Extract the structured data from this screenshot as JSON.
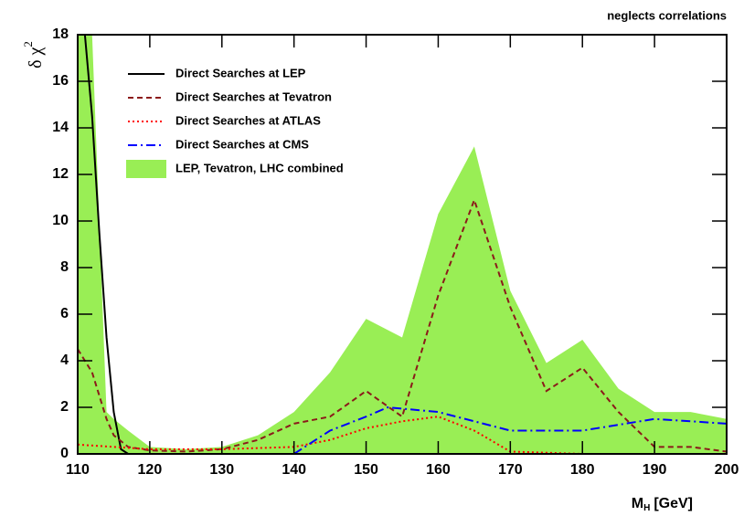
{
  "chart_data": {
    "type": "line",
    "annotation": "neglects correlations",
    "x_label": [
      "M",
      "H",
      "[GeV]"
    ],
    "y_label": [
      "δ χ",
      "2"
    ],
    "xlim": [
      110,
      200
    ],
    "ylim": [
      0,
      18
    ],
    "xticks": [
      110,
      120,
      130,
      140,
      150,
      160,
      170,
      180,
      190,
      200
    ],
    "yticks": [
      0,
      2,
      4,
      6,
      8,
      10,
      12,
      14,
      16,
      18
    ],
    "legend": "upper left",
    "series": [
      {
        "name": "Direct Searches at LEP",
        "color": "#000000",
        "style": "solid",
        "x": [
          111,
          112,
          113,
          114,
          115,
          116,
          117,
          120
        ],
        "values": [
          18,
          14.5,
          9.5,
          5,
          1.8,
          0.2,
          0,
          0
        ]
      },
      {
        "name": "Direct Searches at Tevatron",
        "color": "#8b1a1a",
        "style": "dashed",
        "x": [
          110,
          112,
          114,
          115,
          117,
          120,
          125,
          130,
          135,
          140,
          145,
          150,
          155,
          160,
          165,
          170,
          175,
          180,
          185,
          190,
          195,
          200
        ],
        "values": [
          4.5,
          3.5,
          1.5,
          0.8,
          0.3,
          0.15,
          0.1,
          0.2,
          0.6,
          1.3,
          1.6,
          2.7,
          1.6,
          6.8,
          10.9,
          6.3,
          2.7,
          3.7,
          1.8,
          0.3,
          0.3,
          0.1
        ]
      },
      {
        "name": "Direct Searches at ATLAS",
        "color": "#ff0000",
        "style": "dotted",
        "x": [
          110,
          115,
          120,
          130,
          140,
          145,
          150,
          155,
          160,
          165,
          170,
          180,
          190,
          200
        ],
        "values": [
          0.4,
          0.3,
          0.2,
          0.2,
          0.3,
          0.6,
          1.1,
          1.4,
          1.6,
          1.0,
          0.1,
          0,
          0,
          0
        ]
      },
      {
        "name": "Direct Searches at CMS",
        "color": "#0000ff",
        "style": "dashdot",
        "x": [
          140,
          145,
          150,
          153,
          160,
          170,
          180,
          190,
          200
        ],
        "values": [
          0,
          1.0,
          1.6,
          2.0,
          1.8,
          1.0,
          1.0,
          1.5,
          1.3
        ]
      },
      {
        "name": "LEP, Tevatron, LHC combined",
        "color": "#99ee55",
        "style": "fill",
        "x": [
          110,
          112,
          114,
          115,
          117,
          120,
          125,
          130,
          135,
          140,
          145,
          150,
          155,
          160,
          165,
          170,
          175,
          180,
          185,
          190,
          195,
          200
        ],
        "values": [
          18,
          18,
          1.8,
          1.5,
          1.0,
          0.3,
          0.2,
          0.3,
          0.8,
          1.8,
          3.5,
          5.8,
          5.0,
          10.3,
          13.2,
          7.0,
          3.9,
          4.9,
          2.8,
          1.8,
          1.8,
          1.5
        ]
      }
    ]
  }
}
